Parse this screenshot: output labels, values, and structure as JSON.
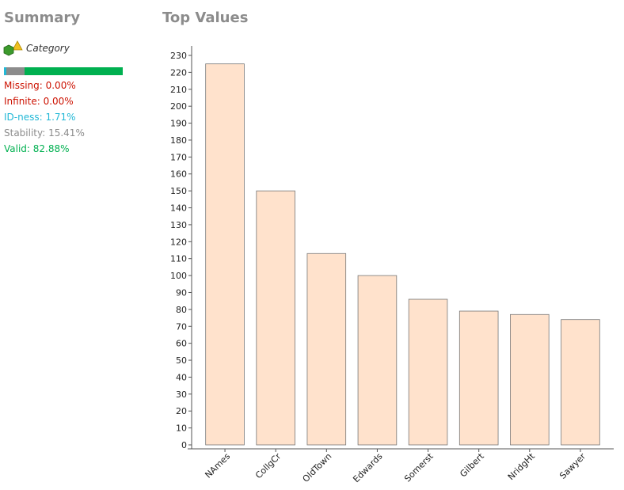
{
  "summary": {
    "title": "Summary",
    "type_label": "Category",
    "type_icon": "category-shapes-icon",
    "stats": {
      "missing": "Missing: 0.00%",
      "infinite": "Infinite: 0.00%",
      "id_ness": "ID-ness: 1.71%",
      "stability": "Stability: 15.41%",
      "valid": "Valid: 82.88%"
    },
    "quality_bar": [
      {
        "key": "missing",
        "value": 0.0,
        "color": "#cc1100"
      },
      {
        "key": "infinite",
        "value": 0.0,
        "color": "#cc1100"
      },
      {
        "key": "id_ness",
        "value": 1.71,
        "color": "#22b8d6"
      },
      {
        "key": "stability",
        "value": 15.41,
        "color": "#8c8c8c"
      },
      {
        "key": "valid",
        "value": 82.88,
        "color": "#00b050"
      }
    ],
    "colors": {
      "missing": "#cc1100",
      "infinite": "#cc1100",
      "id_ness": "#22b8d6",
      "stability": "#8c8c8c",
      "valid": "#00b050"
    }
  },
  "top_values": {
    "title": "Top Values"
  },
  "chart_data": {
    "type": "bar",
    "title": "",
    "xlabel": "",
    "ylabel": "",
    "categories": [
      "NAmes",
      "CollgCr",
      "OldTown",
      "Edwards",
      "Somerst",
      "Gilbert",
      "NridgHt",
      "Sawyer"
    ],
    "values": [
      225,
      150,
      113,
      100,
      86,
      79,
      77,
      74
    ],
    "ylim": [
      0,
      230
    ],
    "ytick_step": 10,
    "grid": false,
    "bar_color": "#ffe2cc",
    "bar_edge_color": "#777777"
  }
}
